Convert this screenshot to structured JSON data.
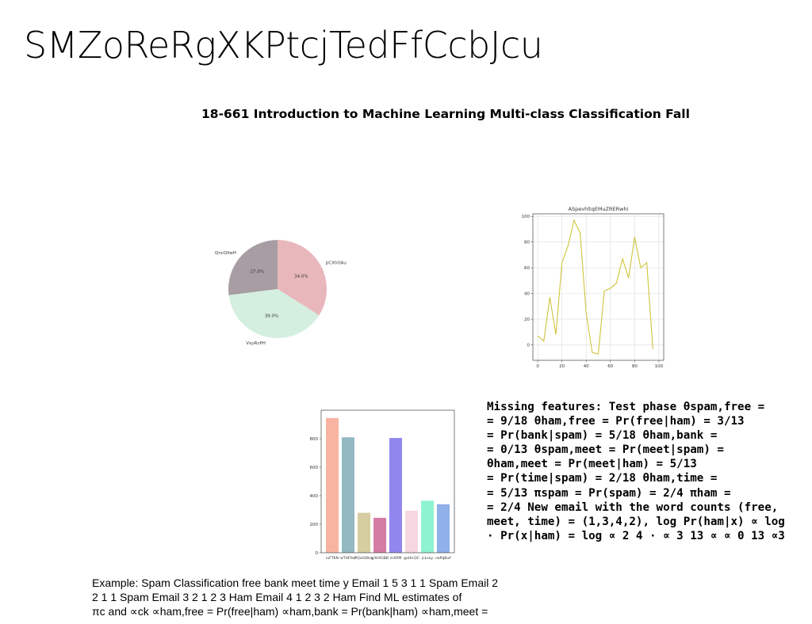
{
  "slide": {
    "title": "SMZoReRgXKPtcjTedFfCcbJcu",
    "subtitle": "18-661 Introduction to Machine Learning Multi-class Classification Fall"
  },
  "chart_data": [
    {
      "type": "pie",
      "labels": [
        "pCXhOAu",
        "VxyRcPH",
        "QncQllwH"
      ],
      "values": [
        34.0,
        39.0,
        27.0
      ],
      "value_labels": [
        "34.0%",
        "39.0%",
        "27.0%"
      ],
      "colors": [
        "#e8b7bc",
        "#d4efe0",
        "#a79da3"
      ]
    },
    {
      "type": "line",
      "title": "ASpevhltqEMuZRERwhi",
      "x": [
        0,
        5,
        10,
        15,
        20,
        25,
        30,
        35,
        40,
        45,
        50,
        55,
        60,
        65,
        70,
        75,
        80,
        85,
        90,
        95,
        100
      ],
      "series": [
        {
          "values": [
            7,
            3,
            37,
            8,
            64,
            77,
            97,
            87,
            25,
            -6,
            -7,
            42,
            44,
            48,
            67,
            52,
            84,
            60,
            64,
            -3,
            null
          ]
        }
      ],
      "xticks": [
        0,
        20,
        40,
        60,
        80,
        100
      ],
      "yticks": [
        0,
        20,
        40,
        60,
        80,
        100
      ],
      "xlim": [
        -4,
        104
      ],
      "ylim": [
        -12,
        102
      ],
      "color": "#cfc43a",
      "grid": true
    },
    {
      "type": "bar",
      "categories": [
        "iuFTKN",
        "wTHFfeb",
        "PQoGtBuy",
        "lyYeXGBB",
        "mXRM",
        "gaHlcQC",
        "jcLsoy",
        "rwPqBuF"
      ],
      "values": [
        945,
        810,
        280,
        245,
        805,
        295,
        365,
        340
      ],
      "colors": [
        "#f9b4a1",
        "#94b9c3",
        "#d6cda0",
        "#d57ca5",
        "#9186ee",
        "#f6d6e1",
        "#8ef3d0",
        "#8fb0e8"
      ],
      "yticks": [
        0,
        200,
        400,
        600,
        800
      ],
      "ylim": [
        0,
        1000
      ]
    }
  ],
  "missing_features": {
    "lines": [
      "Missing features: Test phase θspam,free =",
      "= 9/18 θham,free = Pr(free|ham) = 3/13",
      "= Pr(bank|spam) = 5/18 θham,bank =",
      "= 0/13 θspam,meet = Pr(meet|spam) =",
      "θham,meet = Pr(meet|ham) = 5/13",
      "= Pr(time|spam) = 2/18 θham,time =",
      "= 5/13 πspam = Pr(spam) = 2/4 πham =",
      "= 2/4 New email with the word counts (free,",
      "meet, time) = (1,3,4,2), log Pr(ham|x) ∝ log",
      "· Pr(x|ham) = log ∝ 2 4 · ∝ 3 13 ∝ ∝ 0 13 ∝3"
    ]
  },
  "example": {
    "lines": [
      "Example: Spam Classification free bank meet time y Email 1 5 3 1 1 Spam Email 2",
      "2 1 1 Spam Email 3 2 1 2 3 Ham Email 4 1 2 3 2 Ham Find ML estimates of",
      "πc and ∝ck ∝ham,free = Pr(free|ham) ∝ham,bank = Pr(bank|ham) ∝ham,meet ="
    ]
  }
}
